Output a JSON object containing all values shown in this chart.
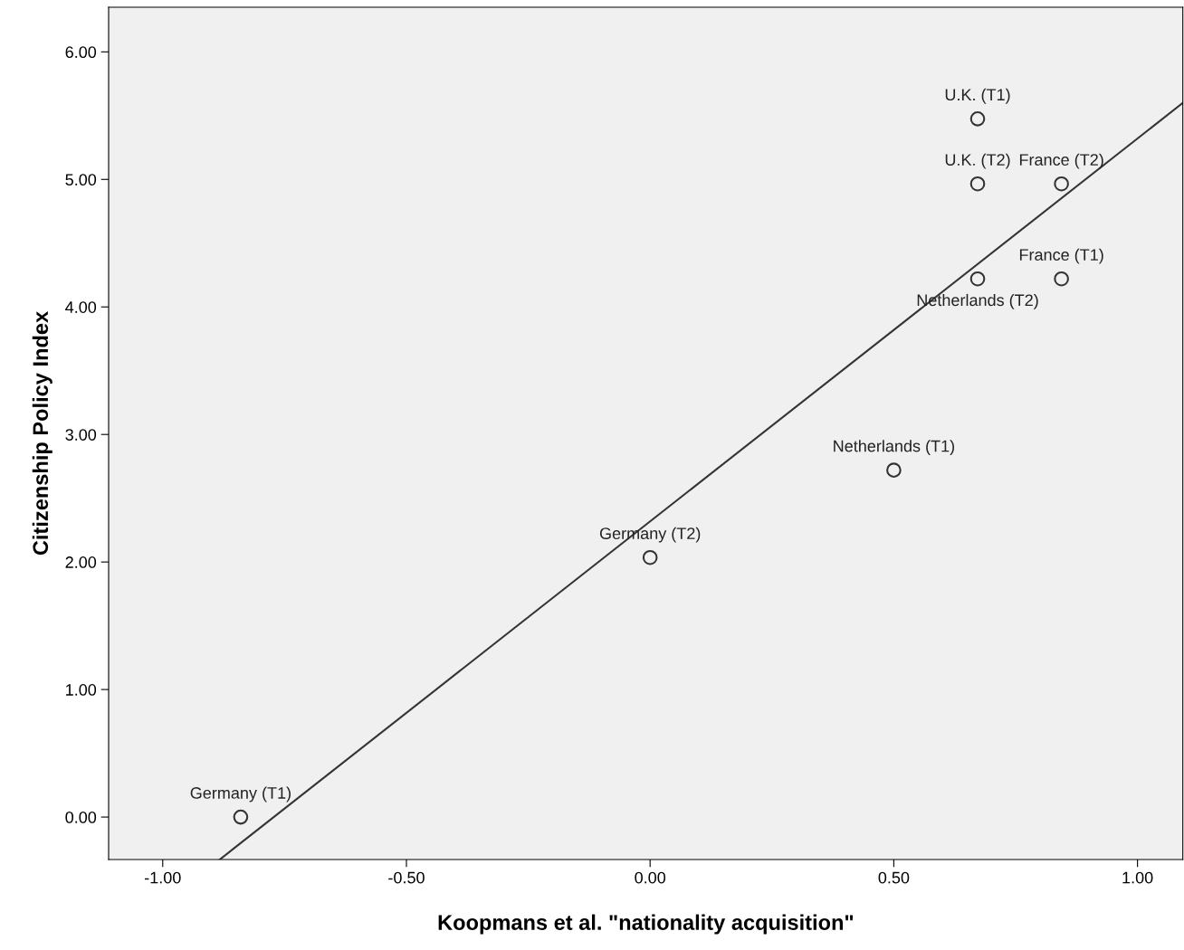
{
  "chart_data": {
    "type": "scatter",
    "xlabel": "Koopmans et al. \"nationality acquisition\"",
    "ylabel": "Citizenship Policy Index",
    "xlim": [
      -1.111,
      1.093
    ],
    "ylim": [
      -0.333,
      6.35
    ],
    "xticks": [
      {
        "value": -1,
        "label": "-1.00"
      },
      {
        "value": -0.5,
        "label": "-0.50"
      },
      {
        "value": 0,
        "label": "0.00"
      },
      {
        "value": 0.5,
        "label": "0.50"
      },
      {
        "value": 1,
        "label": "1.00"
      }
    ],
    "yticks": [
      {
        "value": 0,
        "label": "0.00"
      },
      {
        "value": 1,
        "label": "1.00"
      },
      {
        "value": 2,
        "label": "2.00"
      },
      {
        "value": 3,
        "label": "3.00"
      },
      {
        "value": 4,
        "label": "4.00"
      },
      {
        "value": 5,
        "label": "5.00"
      },
      {
        "value": 6,
        "label": "6.00"
      }
    ],
    "grid": false,
    "legend": false,
    "series": [
      {
        "color": "#333333",
        "marker": "circle",
        "x": [
          0.672,
          0.672,
          0.844,
          0.844,
          0.672,
          0.5,
          0.0,
          -0.84
        ],
        "values": [
          5.475,
          4.965,
          4.965,
          4.22,
          4.22,
          2.72,
          2.035,
          0.0
        ],
        "value_labels": [
          "U.K. (T1)",
          "U.K. (T2)",
          "France (T2)",
          "France (T1)",
          "Netherlands (T2)",
          "Netherlands (T1)",
          "Germany (T2)",
          "Germany (T1)"
        ]
      },
      {
        "type": "line",
        "color": "#333333",
        "marker": "none",
        "line_style": "solid",
        "x": [
          -0.883,
          1.093
        ],
        "values": [
          -0.333,
          5.6
        ]
      }
    ]
  }
}
